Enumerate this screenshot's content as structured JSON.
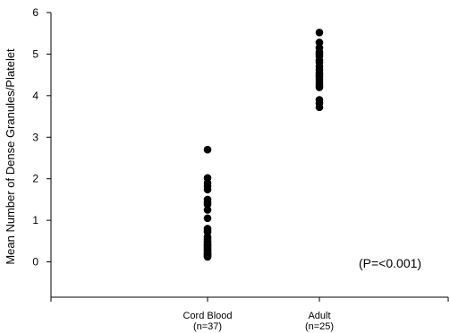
{
  "chart_data": {
    "type": "scatter",
    "ylabel": "Mean Number of Dense Granules/Platelet",
    "ylim": [
      -0.85,
      6
    ],
    "yticks": [
      0,
      1,
      2,
      3,
      4,
      5,
      6
    ],
    "grid": false,
    "categories": [
      {
        "name": "Cord Blood",
        "n_label": "(n=37)"
      },
      {
        "name": "Adult",
        "n_label": "(n=25)"
      }
    ],
    "series": [
      {
        "category": "Cord Blood",
        "values": [
          2.7,
          2.02,
          1.9,
          1.82,
          1.74,
          1.5,
          1.44,
          1.38,
          1.25,
          1.05,
          0.8,
          0.75,
          0.72,
          0.6,
          0.55,
          0.5,
          0.47,
          0.43,
          0.4,
          0.37,
          0.34,
          0.31,
          0.28,
          0.25,
          0.22,
          0.2,
          0.18,
          0.16,
          0.14,
          0.12
        ]
      },
      {
        "category": "Adult",
        "values": [
          5.52,
          5.28,
          5.15,
          5.05,
          5.0,
          4.95,
          4.85,
          4.8,
          4.7,
          4.62,
          4.55,
          4.5,
          4.45,
          4.38,
          4.3,
          4.25,
          4.2,
          3.9,
          3.82,
          3.72
        ]
      }
    ],
    "annotation": "(P=<0.001)",
    "colors": {
      "marker": "#000000",
      "axis": "#000000"
    }
  }
}
